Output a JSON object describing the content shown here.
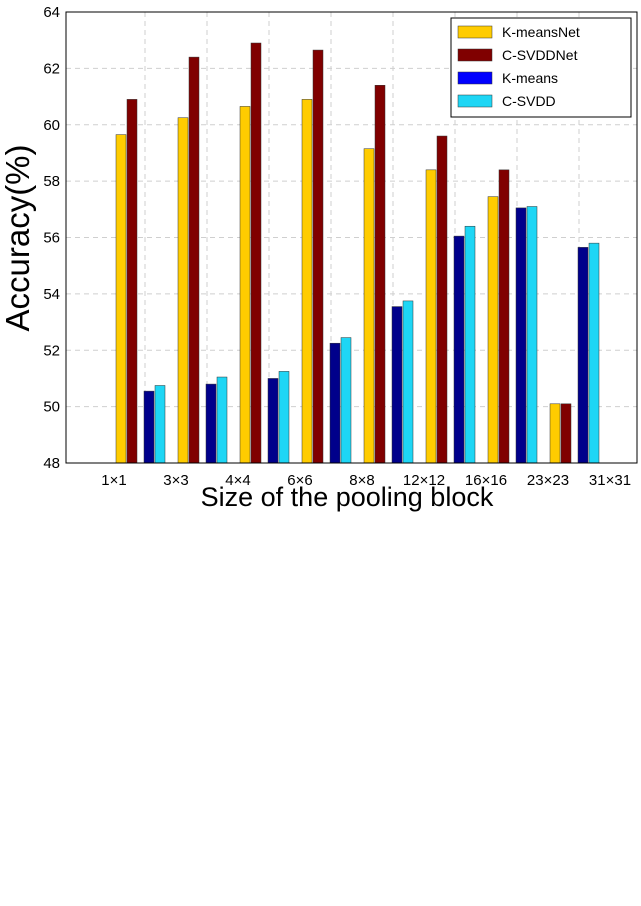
{
  "chart_data": {
    "type": "bar",
    "title": "",
    "xlabel": "Size of the pooling block",
    "ylabel": "Accuracy(%)",
    "ylim": [
      48,
      64
    ],
    "yticks": [
      48,
      50,
      52,
      54,
      56,
      58,
      60,
      62,
      64
    ],
    "grid": true,
    "legend_position": "top-right",
    "categories": [
      "1×1",
      "3×3",
      "4×4",
      "6×6",
      "8×8",
      "12×12",
      "16×16",
      "23×23",
      "31×31"
    ],
    "series": [
      {
        "name": "K-means",
        "color": "#00008b",
        "values": [
          null,
          50.55,
          50.8,
          51.0,
          52.25,
          53.55,
          56.05,
          57.05,
          55.65
        ]
      },
      {
        "name": "C-SVDD",
        "color": "#1ed6f5",
        "values": [
          null,
          50.75,
          51.05,
          51.25,
          52.45,
          53.75,
          56.4,
          57.1,
          55.8
        ]
      },
      {
        "name": "K-meansNet",
        "color": "#ffcc00",
        "values": [
          59.65,
          60.25,
          60.65,
          60.9,
          59.15,
          58.4,
          57.45,
          50.1,
          null
        ]
      },
      {
        "name": "C-SVDDNet",
        "color": "#800000",
        "values": [
          60.9,
          62.4,
          62.9,
          62.65,
          61.4,
          59.6,
          58.4,
          50.1,
          null
        ]
      }
    ],
    "legend_order": [
      "K-meansNet",
      "C-SVDDNet",
      "K-means",
      "C-SVDD"
    ],
    "legend_colors": {
      "K-meansNet": "#ffcc00",
      "C-SVDDNet": "#800000",
      "K-means": "#0000ff",
      "C-SVDD": "#1ed6f5"
    }
  }
}
